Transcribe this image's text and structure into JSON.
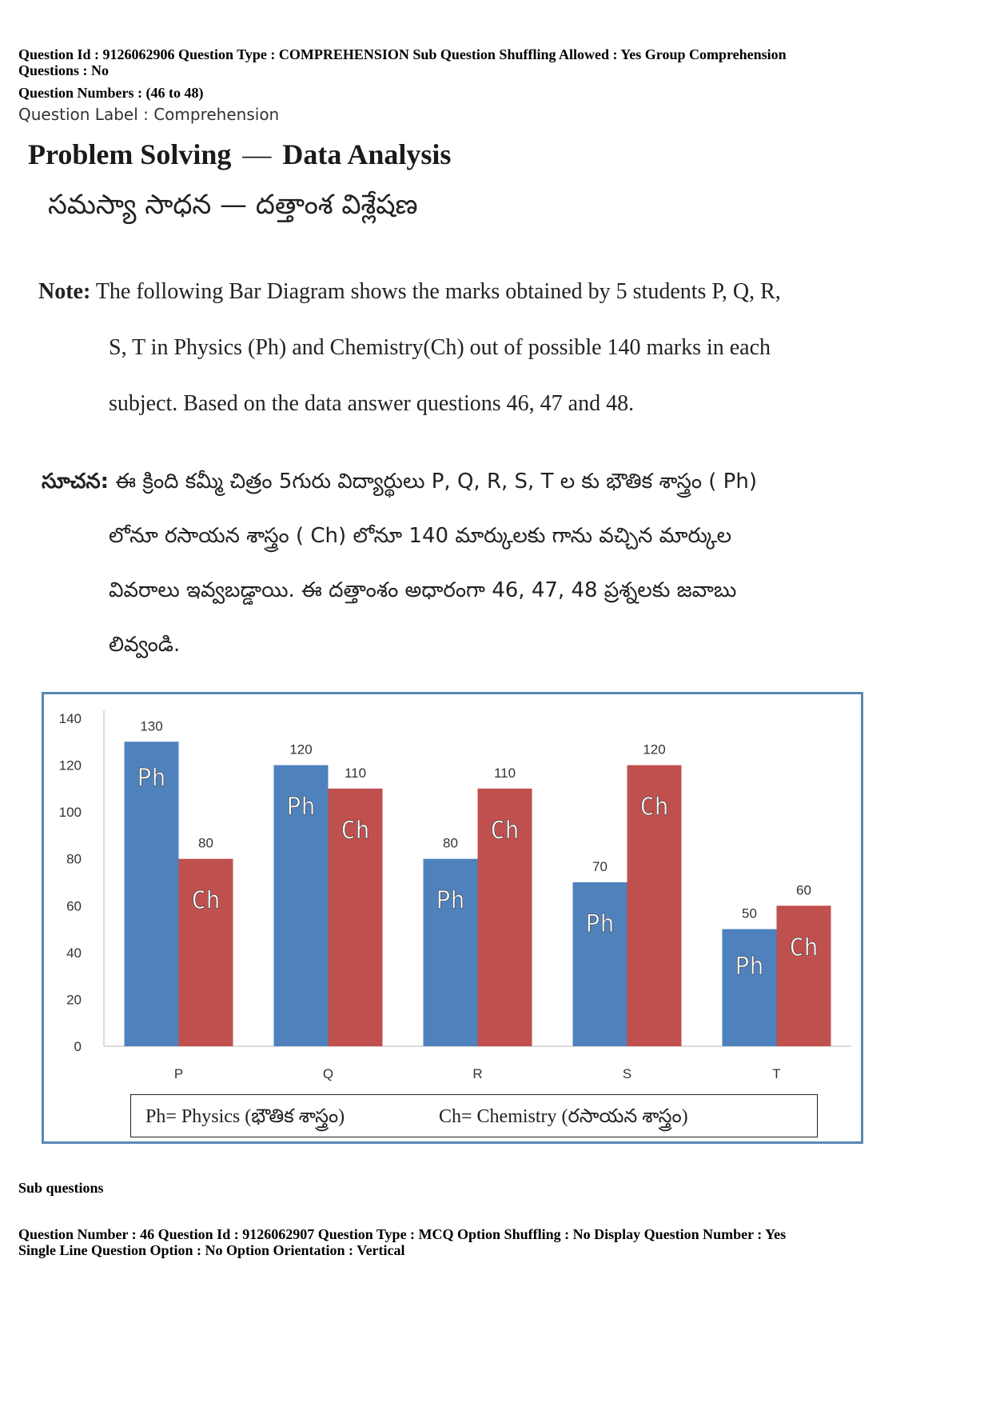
{
  "header": {
    "line1": "Question Id : 9126062906  Question Type : COMPREHENSION  Sub Question Shuffling Allowed : Yes  Group Comprehension",
    "line2": "Questions : No",
    "numbers": "Question Numbers : (46 to 48)",
    "label": "Question Label : Comprehension"
  },
  "title": {
    "en_left": "Problem Solving",
    "en_sep": "—",
    "en_right": "Data Analysis",
    "te": "సమస్యా సాధన  —  దత్తాంశ విశ్లేషణ"
  },
  "note_en": {
    "label": "Note:",
    "line1": " The following Bar Diagram shows the marks obtained by 5 students P, Q, R,",
    "line2": "S, T in Physics (Ph) and Chemistry(Ch) out of possible 140 marks in each",
    "line3": "subject. Based on the data answer questions 46, 47 and 48."
  },
  "note_te": {
    "label": "సూచన:",
    "line1": " ఈ క్రింది కమ్మీ చిత్రం 5గురు విద్యార్థులు P, Q, R, S, T ల కు భౌతిక శాస్త్రం ( Ph)",
    "line2": "లోనూ రసాయన శాస్త్రం ( Ch) లోనూ 140 మార్కులకు గాను వచ్చిన మార్కుల",
    "line3": "వివరాలు ఇవ్వబడ్డాయి. ఈ దత్తాంశం అధారంగా  46, 47, 48 ప్రశ్నలకు జవాబు",
    "line4": "లివ్వండి."
  },
  "chart_data": {
    "type": "bar",
    "categories": [
      "P",
      "Q",
      "R",
      "S",
      "T"
    ],
    "series": [
      {
        "name": "Ph",
        "values": [
          130,
          120,
          80,
          70,
          50
        ],
        "color": "#4f81bd"
      },
      {
        "name": "Ch",
        "values": [
          80,
          110,
          110,
          120,
          60
        ],
        "color": "#c0504d"
      }
    ],
    "yticks": [
      0,
      20,
      40,
      60,
      80,
      100,
      120,
      140
    ],
    "ylim": [
      0,
      140
    ],
    "grid": false,
    "bar_labels": [
      "Ph",
      "Ch"
    ],
    "legend": {
      "physics": "Ph= Physics (భౌతిక శాస్త్రం)",
      "chemistry": "Ch= Chemistry (రసాయన శాస్త్రం)",
      "placement": "bottom"
    }
  },
  "footer": {
    "sub_questions": "Sub questions",
    "q_line1": "Question Number : 46  Question Id : 9126062907  Question Type : MCQ  Option Shuffling : No  Display Question Number : Yes",
    "q_line2": "Single Line Question Option : No  Option Orientation : Vertical"
  }
}
